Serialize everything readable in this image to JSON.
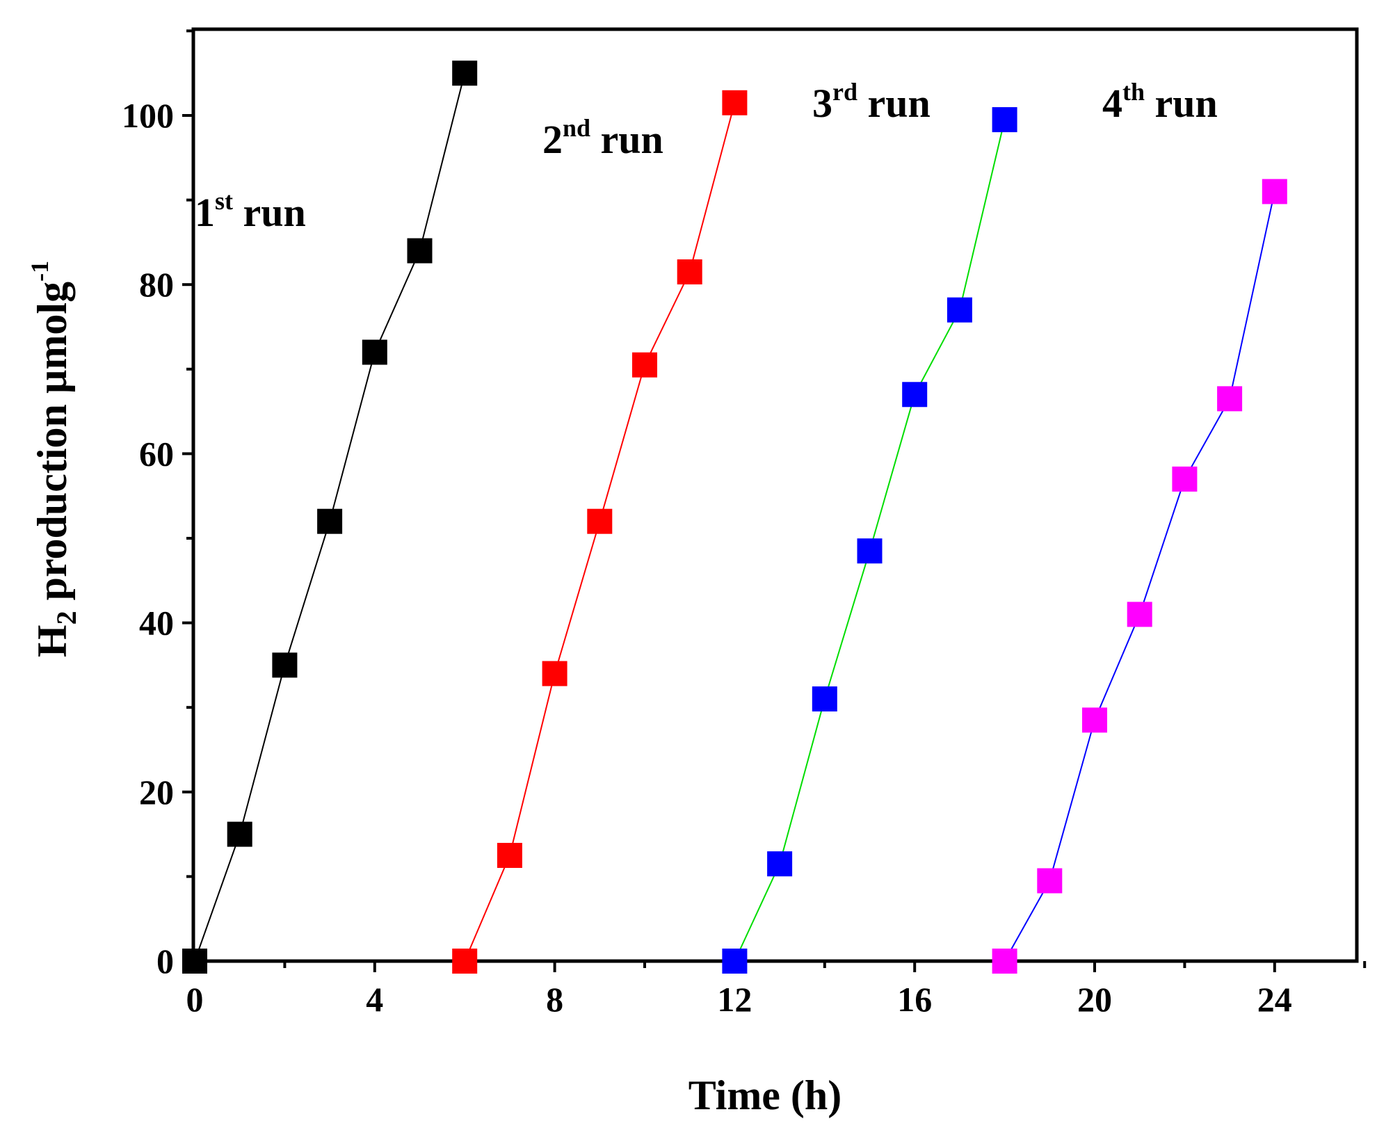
{
  "chart_data": {
    "type": "line",
    "xlabel": "Time (h)",
    "ylabel": {
      "main": "H",
      "sub": "2",
      "rest": " production µmolg",
      "sup": "-1"
    },
    "xlim": [
      0,
      26
    ],
    "ylim": [
      0,
      110
    ],
    "xticks": [
      0,
      4,
      8,
      12,
      16,
      20,
      24
    ],
    "yticks": [
      0,
      20,
      40,
      60,
      80,
      100
    ],
    "series": [
      {
        "name": "1st run",
        "color": "#000000",
        "line_color": "#000000",
        "x": [
          0,
          1,
          2,
          3,
          4,
          5,
          6
        ],
        "y": [
          0,
          15,
          35,
          52,
          72,
          84,
          105
        ]
      },
      {
        "name": "2nd run",
        "color": "#ff0000",
        "line_color": "#ff0000",
        "x": [
          6,
          7,
          8,
          9,
          10,
          11,
          12
        ],
        "y": [
          0,
          12.5,
          34,
          52,
          70.5,
          81.5,
          101.5
        ]
      },
      {
        "name": "3rd run",
        "color": "#0000ff",
        "line_color": "#00dd00",
        "x": [
          12,
          13,
          14,
          15,
          16,
          17,
          18
        ],
        "y": [
          0,
          11.5,
          31,
          48.5,
          67,
          77,
          99.5
        ]
      },
      {
        "name": "4th run",
        "color": "#ff00ff",
        "line_color": "#0000ff",
        "x": [
          18,
          19,
          20,
          21,
          22,
          23,
          24
        ],
        "y": [
          0,
          9.5,
          28.5,
          41,
          57,
          66.5,
          91
        ]
      }
    ],
    "annotations": [
      {
        "num": "1",
        "sup": "st",
        "word": " run"
      },
      {
        "num": "2",
        "sup": "nd",
        "word": " run"
      },
      {
        "num": "3",
        "sup": "rd",
        "word": " run"
      },
      {
        "num": "4",
        "sup": "th",
        "word": " run"
      }
    ]
  }
}
